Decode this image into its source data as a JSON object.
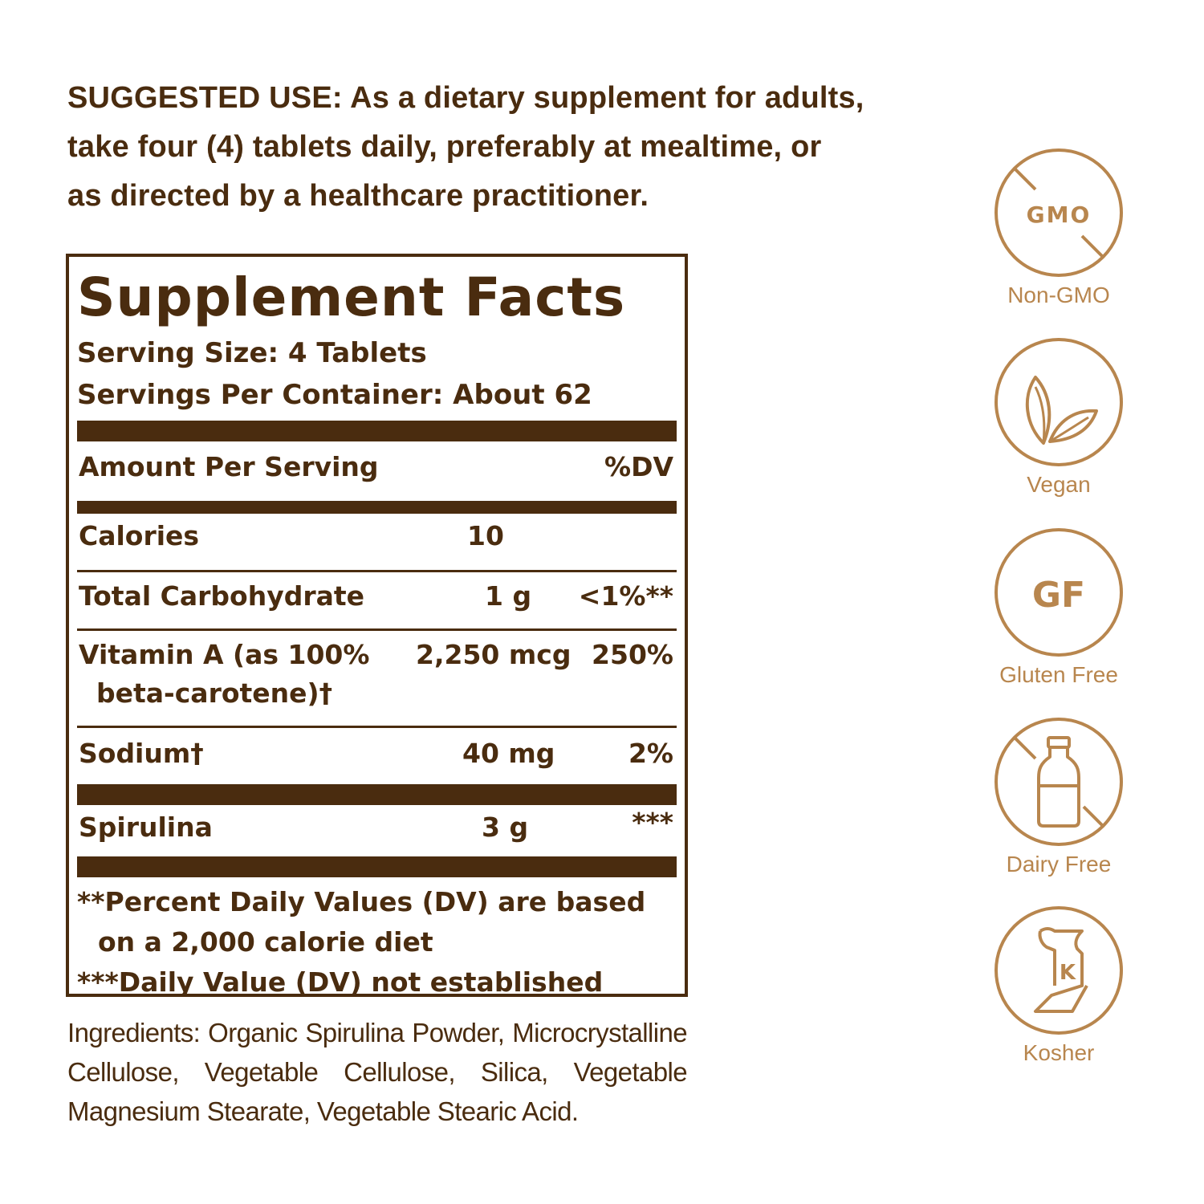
{
  "suggested_use": {
    "lines": [
      "SUGGESTED USE: As a dietary supplement for adults,",
      "take four (4) tablets daily, preferably at mealtime, or",
      "as directed by a healthcare practitioner."
    ]
  },
  "facts": {
    "title": "Supplement Facts",
    "serving_size": "Serving Size: 4 Tablets",
    "servings_per_container": "Servings Per Container: About 62",
    "header": {
      "amount": "Amount Per Serving",
      "dv": "%DV"
    },
    "rows": {
      "calories": {
        "name": "Calories",
        "amount": "10",
        "dv": ""
      },
      "carb": {
        "name": "Total Carbohydrate",
        "amount": "1 g",
        "dv": "<1%**"
      },
      "vita": {
        "name": "Vitamin A (as 100%",
        "name2": "beta-carotene)†",
        "amount": "2,250 mcg",
        "dv": "250%"
      },
      "sodium": {
        "name": "Sodium†",
        "amount": "40 mg",
        "dv": "2%"
      },
      "spirulina": {
        "name": "Spirulina",
        "amount": "3 g",
        "dv": "***"
      }
    },
    "footnotes": {
      "line1": "**Percent Daily Values (DV) are based",
      "line2": "on a 2,000 calorie diet",
      "line3": "***Daily Value (DV) not established"
    }
  },
  "ingredients": "Ingredients: Organic Spirulina Powder, Microcrystalline Cellulose, Vegetable Cellulose, Silica, Vegetable Magnesium Stearate, Vegetable Stearic Acid.",
  "badges": {
    "gmo": {
      "icon_text": "GMO",
      "label": "Non-GMO"
    },
    "vegan": {
      "label": "Vegan"
    },
    "gf": {
      "icon_text": "GF",
      "label": "Gluten Free"
    },
    "dairy": {
      "label": "Dairy Free"
    },
    "kosher": {
      "icon_text": "K",
      "label": "Kosher"
    }
  },
  "colors": {
    "text_brown": "#4a2c0f",
    "badge_tan": "#b8864e"
  }
}
